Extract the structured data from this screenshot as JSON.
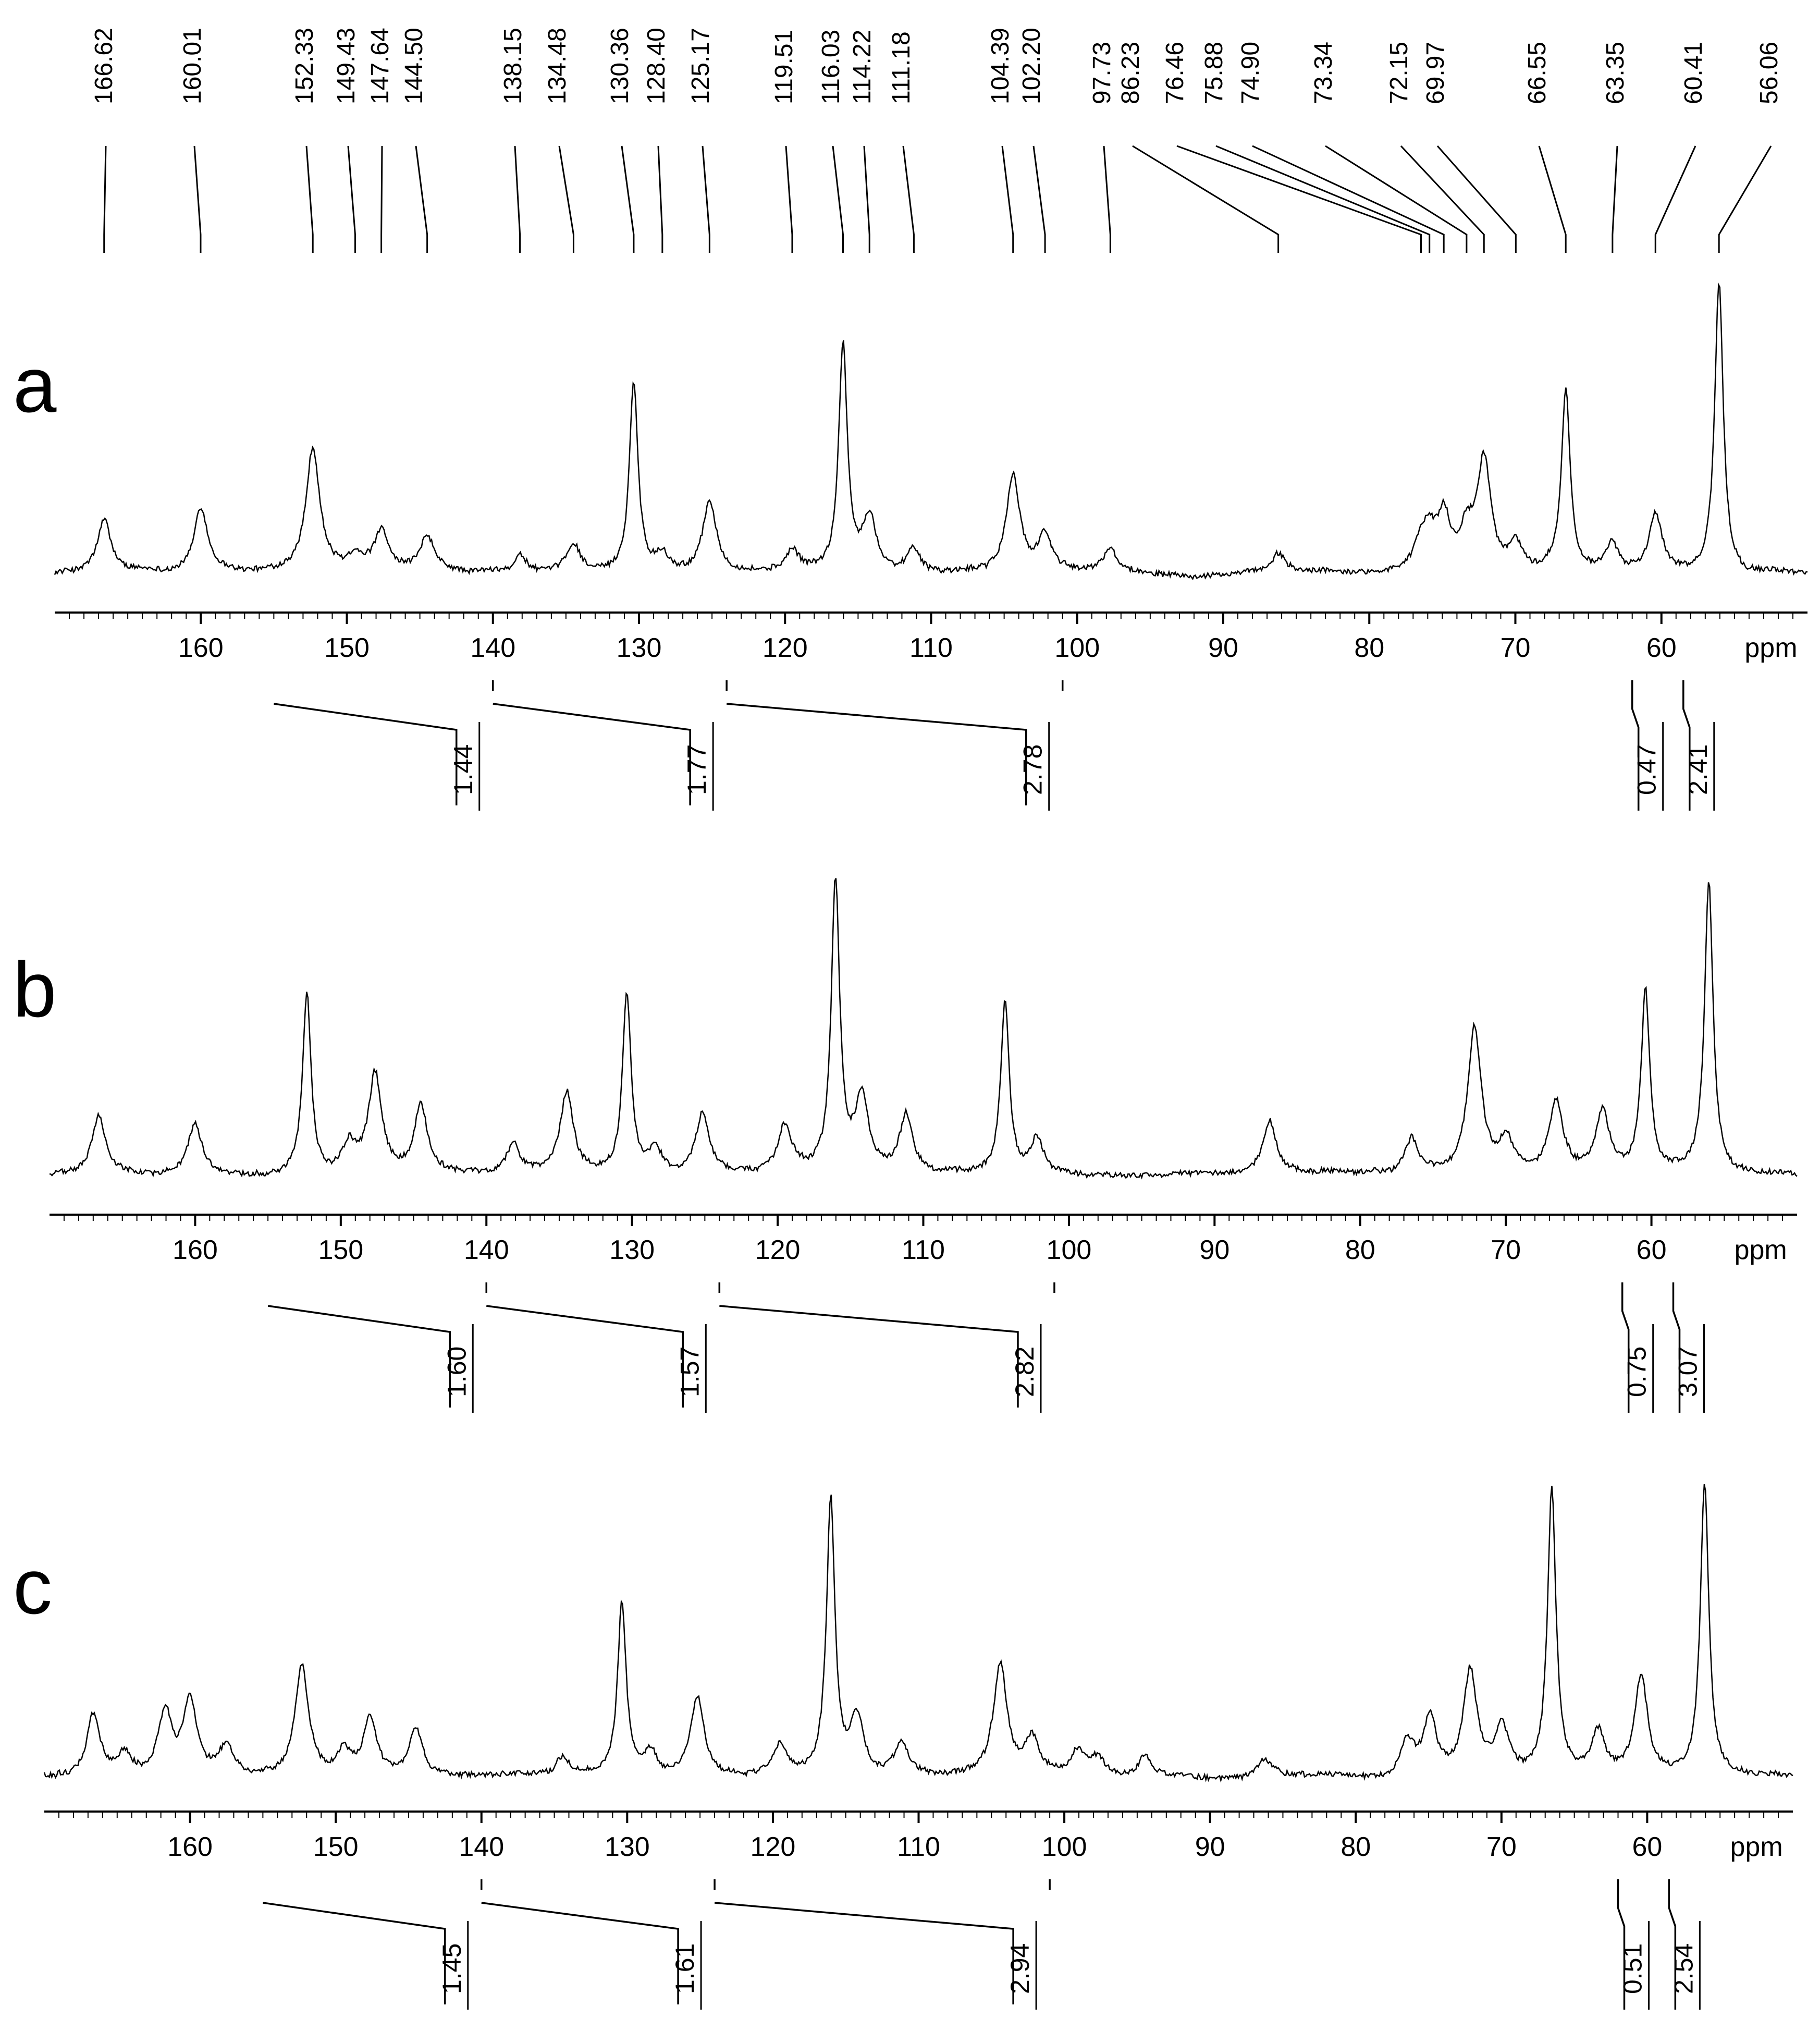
{
  "chart_data": [
    {
      "panel": "a",
      "type": "line",
      "xlabel": "ppm",
      "x_reversed": true,
      "xlim": [
        170,
        50
      ],
      "x_ticks": [
        "160",
        "150",
        "140",
        "130",
        "120",
        "110",
        "100",
        "90",
        "80",
        "70",
        "60"
      ],
      "peak_labels": [
        "166.62",
        "160.01",
        "152.33",
        "149.43",
        "147.64",
        "144.50",
        "138.15",
        "134.48",
        "130.36",
        "128.40",
        "125.17",
        "119.51",
        "116.03",
        "114.22",
        "111.18",
        "104.39",
        "102.20",
        "97.73",
        "86.23",
        "76.46",
        "75.88",
        "74.90",
        "73.34",
        "72.15",
        "69.97",
        "66.55",
        "63.35",
        "60.41",
        "56.06"
      ],
      "integrals": [
        {
          "from": 155,
          "to": 140,
          "label": "1.44"
        },
        {
          "from": 140,
          "to": 124,
          "label": "1.77"
        },
        {
          "from": 124,
          "to": 101,
          "label": "2.78"
        },
        {
          "from": 62,
          "to": 58.5,
          "label": "0.47"
        },
        {
          "from": 58.5,
          "to": 54,
          "label": "2.41"
        }
      ],
      "peaks": [
        {
          "ppm": 166.62,
          "h": 0.18
        },
        {
          "ppm": 160.01,
          "h": 0.22
        },
        {
          "ppm": 152.33,
          "h": 0.42
        },
        {
          "ppm": 149.43,
          "h": 0.05
        },
        {
          "ppm": 147.64,
          "h": 0.14
        },
        {
          "ppm": 144.5,
          "h": 0.12
        },
        {
          "ppm": 138.15,
          "h": 0.06
        },
        {
          "ppm": 134.48,
          "h": 0.1
        },
        {
          "ppm": 130.36,
          "h": 0.65
        },
        {
          "ppm": 128.4,
          "h": 0.06
        },
        {
          "ppm": 125.17,
          "h": 0.25
        },
        {
          "ppm": 119.51,
          "h": 0.07
        },
        {
          "ppm": 116.03,
          "h": 0.78
        },
        {
          "ppm": 114.22,
          "h": 0.18
        },
        {
          "ppm": 111.18,
          "h": 0.08
        },
        {
          "ppm": 104.39,
          "h": 0.33
        },
        {
          "ppm": 102.2,
          "h": 0.13
        },
        {
          "ppm": 97.73,
          "h": 0.08
        },
        {
          "ppm": 86.23,
          "h": 0.06
        },
        {
          "ppm": 76.46,
          "h": 0.09
        },
        {
          "ppm": 75.88,
          "h": 0.1
        },
        {
          "ppm": 74.9,
          "h": 0.18
        },
        {
          "ppm": 73.34,
          "h": 0.12
        },
        {
          "ppm": 72.15,
          "h": 0.38
        },
        {
          "ppm": 69.97,
          "h": 0.1
        },
        {
          "ppm": 66.55,
          "h": 0.62
        },
        {
          "ppm": 63.35,
          "h": 0.1
        },
        {
          "ppm": 60.41,
          "h": 0.2
        },
        {
          "ppm": 56.06,
          "h": 1.0
        }
      ]
    },
    {
      "panel": "b",
      "type": "line",
      "xlabel": "ppm",
      "x_reversed": true,
      "xlim": [
        170,
        50
      ],
      "x_ticks": [
        "160",
        "150",
        "140",
        "130",
        "120",
        "110",
        "100",
        "90",
        "80",
        "70",
        "60"
      ],
      "integrals": [
        {
          "from": 155,
          "to": 140,
          "label": "1.60"
        },
        {
          "from": 140,
          "to": 124,
          "label": "1.57"
        },
        {
          "from": 124,
          "to": 101,
          "label": "2.82"
        },
        {
          "from": 62,
          "to": 58.5,
          "label": "0.75"
        },
        {
          "from": 58.5,
          "to": 54,
          "label": "3.07"
        }
      ],
      "peaks": [
        {
          "ppm": 166.62,
          "h": 0.2
        },
        {
          "ppm": 160.01,
          "h": 0.18
        },
        {
          "ppm": 152.33,
          "h": 0.62
        },
        {
          "ppm": 149.43,
          "h": 0.1
        },
        {
          "ppm": 147.64,
          "h": 0.34
        },
        {
          "ppm": 144.5,
          "h": 0.24
        },
        {
          "ppm": 138.15,
          "h": 0.1
        },
        {
          "ppm": 134.48,
          "h": 0.28
        },
        {
          "ppm": 130.36,
          "h": 0.62
        },
        {
          "ppm": 128.4,
          "h": 0.08
        },
        {
          "ppm": 125.17,
          "h": 0.2
        },
        {
          "ppm": 119.51,
          "h": 0.16
        },
        {
          "ppm": 116.03,
          "h": 1.0
        },
        {
          "ppm": 114.22,
          "h": 0.25
        },
        {
          "ppm": 111.18,
          "h": 0.2
        },
        {
          "ppm": 104.39,
          "h": 0.6
        },
        {
          "ppm": 102.2,
          "h": 0.12
        },
        {
          "ppm": 86.23,
          "h": 0.18
        },
        {
          "ppm": 76.46,
          "h": 0.12
        },
        {
          "ppm": 72.15,
          "h": 0.5
        },
        {
          "ppm": 69.97,
          "h": 0.12
        },
        {
          "ppm": 66.55,
          "h": 0.25
        },
        {
          "ppm": 63.35,
          "h": 0.2
        },
        {
          "ppm": 60.41,
          "h": 0.62
        },
        {
          "ppm": 56.06,
          "h": 1.0
        }
      ]
    },
    {
      "panel": "c",
      "type": "line",
      "xlabel": "ppm",
      "x_reversed": true,
      "xlim": [
        170,
        50
      ],
      "x_ticks": [
        "160",
        "150",
        "140",
        "130",
        "120",
        "110",
        "100",
        "90",
        "80",
        "70",
        "60"
      ],
      "integrals": [
        {
          "from": 155,
          "to": 140,
          "label": "1.45"
        },
        {
          "from": 140,
          "to": 124,
          "label": "1.61"
        },
        {
          "from": 124,
          "to": 101,
          "label": "2.94"
        },
        {
          "from": 62,
          "to": 58.5,
          "label": "0.51"
        },
        {
          "from": 58.5,
          "to": 54,
          "label": "2.54"
        }
      ],
      "peaks": [
        {
          "ppm": 166.62,
          "h": 0.22
        },
        {
          "ppm": 164.5,
          "h": 0.08
        },
        {
          "ppm": 161.7,
          "h": 0.22
        },
        {
          "ppm": 160.01,
          "h": 0.26
        },
        {
          "ppm": 157.5,
          "h": 0.1
        },
        {
          "ppm": 152.33,
          "h": 0.38
        },
        {
          "ppm": 149.43,
          "h": 0.08
        },
        {
          "ppm": 147.64,
          "h": 0.2
        },
        {
          "ppm": 144.5,
          "h": 0.16
        },
        {
          "ppm": 134.48,
          "h": 0.06
        },
        {
          "ppm": 130.36,
          "h": 0.6
        },
        {
          "ppm": 128.4,
          "h": 0.08
        },
        {
          "ppm": 125.17,
          "h": 0.28
        },
        {
          "ppm": 119.51,
          "h": 0.1
        },
        {
          "ppm": 116.03,
          "h": 0.95
        },
        {
          "ppm": 114.22,
          "h": 0.2
        },
        {
          "ppm": 111.18,
          "h": 0.12
        },
        {
          "ppm": 104.39,
          "h": 0.38
        },
        {
          "ppm": 102.2,
          "h": 0.12
        },
        {
          "ppm": 99.1,
          "h": 0.08
        },
        {
          "ppm": 97.73,
          "h": 0.06
        },
        {
          "ppm": 94.5,
          "h": 0.07
        },
        {
          "ppm": 86.23,
          "h": 0.06
        },
        {
          "ppm": 76.46,
          "h": 0.12
        },
        {
          "ppm": 74.9,
          "h": 0.2
        },
        {
          "ppm": 72.15,
          "h": 0.35
        },
        {
          "ppm": 69.97,
          "h": 0.16
        },
        {
          "ppm": 66.55,
          "h": 0.98
        },
        {
          "ppm": 63.35,
          "h": 0.14
        },
        {
          "ppm": 60.41,
          "h": 0.34
        },
        {
          "ppm": 56.06,
          "h": 1.0
        }
      ]
    }
  ]
}
